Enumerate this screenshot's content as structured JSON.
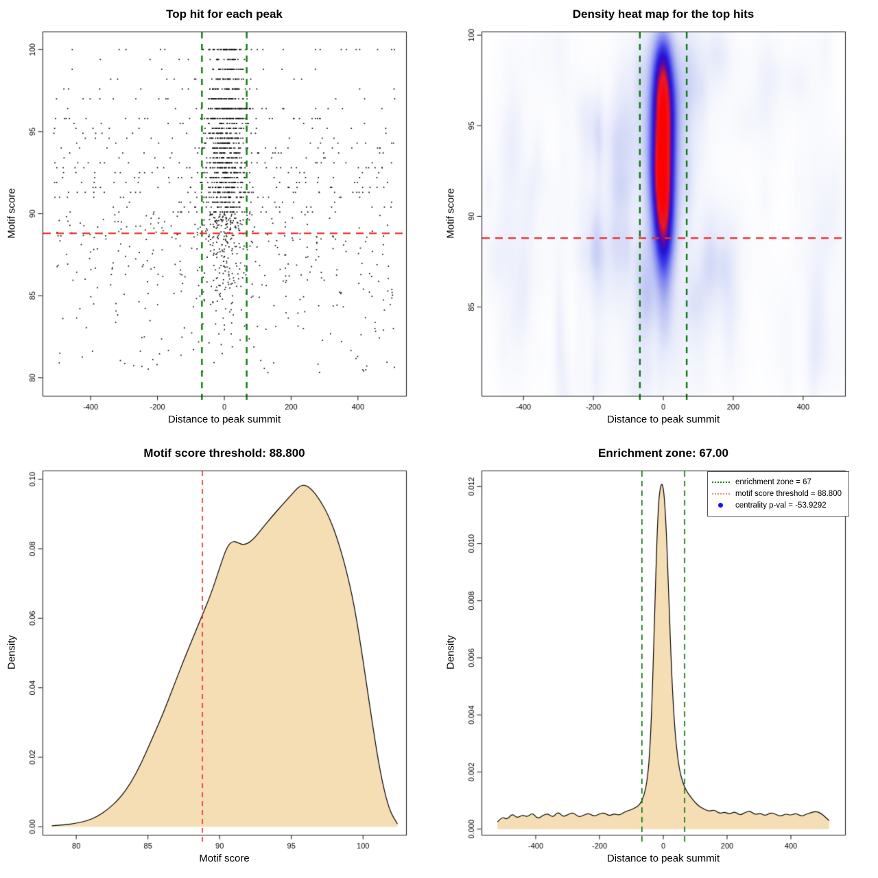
{
  "colors": {
    "background": "#ffffff",
    "threshold_line": "#ee2c2c",
    "zone_line": "#0c7a0c",
    "density_fill": "#f5deb3",
    "curve_stroke": "#000000",
    "point_color": "#0a0a0a",
    "heat_core": "#ff0000",
    "heat_halo": "#2222cc",
    "legend_green": "#0c7a0c",
    "legend_red": "#ef8585",
    "legend_blue": "#1414ff"
  },
  "summary": {
    "motif_score_threshold": "88.800",
    "enrichment_zone": "67.00",
    "centrality_p_val": "-53.9292"
  },
  "chart_data": [
    {
      "type": "scatter",
      "title": "Top hit for each peak",
      "xlabel": "Distance to peak summit",
      "ylabel": "Motif score",
      "xlim": [
        -544,
        544
      ],
      "ylim": [
        78.9,
        101.1
      ],
      "xticks": [
        -400,
        -200,
        0,
        200,
        400
      ],
      "xtick_labels": [
        "-400",
        "-200",
        "0",
        "200",
        "400"
      ],
      "yticks": [
        80,
        85,
        90,
        95,
        100
      ],
      "ytick_labels": [
        "80",
        "85",
        "90",
        "95",
        "100"
      ],
      "threshold_line": {
        "axis": "y",
        "value": 88.8
      },
      "zone_lines": {
        "values": [
          -67,
          67
        ]
      },
      "points_generator": {
        "seed": 911,
        "y_max": 100,
        "snap": [
          {
            "above": 95.5,
            "step": 0.6
          },
          {
            "above": 90,
            "step": 0.3
          }
        ],
        "background": {
          "n": 720,
          "x_min": -510,
          "x_max": 510,
          "y_mean": 90.0,
          "y_sd": 4.6,
          "y_min": 80.3
        },
        "center": {
          "n": 1150,
          "x_mean": 5,
          "x_sd": 32,
          "y_mean": 93.2,
          "y_sd": 3.8,
          "y_min": 81
        }
      }
    },
    {
      "type": "heatmap",
      "title": "Density heat map for the top hits",
      "xlabel": "Distance to peak summit",
      "ylabel": "Motif score",
      "xlim": [
        -520,
        520
      ],
      "ylim": [
        80.1,
        100.2
      ],
      "xticks": [
        -400,
        -200,
        0,
        200,
        400
      ],
      "xtick_labels": [
        "-400",
        "-200",
        "0",
        "200",
        "400"
      ],
      "yticks": [
        85,
        90,
        95,
        100
      ],
      "ytick_labels": [
        "85",
        "90",
        "95",
        "100"
      ],
      "threshold_line": {
        "axis": "y",
        "value": 88.8
      },
      "zone_lines": {
        "values": [
          -67,
          67
        ]
      },
      "hotspot": {
        "center_x": -5,
        "score_range": [
          84,
          100
        ],
        "core_score_range": [
          91,
          97.5
        ]
      },
      "blob": [
        [
          -5,
          95.4,
          27,
          2.5,
          1.0
        ],
        [
          -5,
          93.1,
          26,
          2.3,
          0.96
        ],
        [
          -4,
          91.1,
          24,
          2.1,
          0.82
        ],
        [
          -3,
          89.5,
          22,
          1.9,
          0.6
        ],
        [
          -2,
          88.1,
          20,
          1.8,
          0.44
        ],
        [
          -5,
          97.2,
          24,
          1.9,
          0.8
        ],
        [
          -6,
          98.8,
          19,
          1.5,
          0.52
        ],
        [
          -2,
          85.8,
          20,
          2.0,
          0.3
        ],
        [
          0,
          84.2,
          16,
          1.6,
          0.16
        ],
        [
          -5,
          93.5,
          60,
          6.0,
          0.26
        ],
        [
          -5,
          92.0,
          100,
          9.0,
          0.13
        ]
      ],
      "noise": {
        "seed": 77,
        "n": 150,
        "base": 0.03,
        "amp_min": 0.05,
        "amp_max": 0.17,
        "sx_min": 8,
        "sx_max": 34,
        "sy_min": 0.7,
        "sy_max": 3.0
      }
    },
    {
      "type": "area",
      "title": "Motif score threshold: 88.800",
      "xlabel": "Motif score",
      "ylabel": "Density",
      "xlim": [
        77.65,
        103.0
      ],
      "ylim": [
        -0.0023,
        0.1025
      ],
      "xticks": [
        80,
        85,
        90,
        95,
        100
      ],
      "xtick_labels": [
        "80",
        "85",
        "90",
        "95",
        "100"
      ],
      "yticks": [
        0,
        0.02,
        0.04,
        0.06,
        0.08,
        0.1
      ],
      "ytick_labels": [
        "0.00",
        "0.02",
        "0.04",
        "0.06",
        "0.08",
        "0.10"
      ],
      "threshold_line": {
        "axis": "x",
        "value": 88.8
      },
      "curve": {
        "x": [
          78.3,
          79.2,
          80,
          80.8,
          81.5,
          82.2,
          83,
          83.8,
          84.5,
          85.2,
          86,
          86.8,
          87.5,
          88.2,
          88.8,
          89.4,
          90,
          90.5,
          90.9,
          91.3,
          91.7,
          92.3,
          93,
          93.7,
          94.4,
          95,
          95.5,
          95.9,
          96.4,
          97,
          97.6,
          98.2,
          98.8,
          99.4,
          100,
          100.6,
          101.2,
          101.8,
          102.4
        ],
        "y": [
          0.0003,
          0.0006,
          0.001,
          0.0018,
          0.003,
          0.005,
          0.008,
          0.0125,
          0.018,
          0.0245,
          0.032,
          0.0405,
          0.048,
          0.055,
          0.061,
          0.067,
          0.0745,
          0.0805,
          0.0823,
          0.0817,
          0.081,
          0.0824,
          0.086,
          0.0895,
          0.0928,
          0.0955,
          0.0978,
          0.0985,
          0.0972,
          0.094,
          0.0895,
          0.083,
          0.0745,
          0.0635,
          0.048,
          0.031,
          0.0155,
          0.005,
          0.0008
        ]
      }
    },
    {
      "type": "area",
      "title": "Enrichment zone: 67.00",
      "xlabel": "Distance to peak summit",
      "ylabel": "Density",
      "xlim": [
        -570,
        570
      ],
      "ylim": [
        -0.0002,
        0.01256
      ],
      "xticks": [
        -400,
        -200,
        0,
        200,
        400
      ],
      "xtick_labels": [
        "-400",
        "-200",
        "0",
        "200",
        "400"
      ],
      "yticks": [
        0,
        0.002,
        0.004,
        0.006,
        0.008,
        0.01,
        0.012
      ],
      "ytick_labels": [
        "0.000",
        "0.002",
        "0.004",
        "0.006",
        "0.008",
        "0.010",
        "0.012"
      ],
      "zone_lines": {
        "values": [
          -67,
          67
        ]
      },
      "curve": {
        "x": [
          -520,
          -505,
          -490,
          -474,
          -458,
          -442,
          -426,
          -410,
          -394,
          -378,
          -362,
          -346,
          -330,
          -314,
          -298,
          -282,
          -266,
          -250,
          -234,
          -218,
          -202,
          -186,
          -170,
          -154,
          -138,
          -122,
          -106,
          -92,
          -80,
          -70,
          -60,
          -52,
          -44,
          -36,
          -28,
          -20,
          -14,
          -8,
          -3,
          2,
          8,
          14,
          20,
          28,
          36,
          44,
          52,
          62,
          72,
          84,
          98,
          112,
          128,
          144,
          160,
          176,
          192,
          208,
          224,
          240,
          256,
          272,
          288,
          304,
          320,
          336,
          352,
          368,
          384,
          400,
          416,
          432,
          448,
          464,
          480,
          495,
          508,
          520
        ],
        "y": [
          0.00025,
          0.00045,
          0.00032,
          0.00055,
          0.00038,
          0.0005,
          0.00042,
          0.00058,
          0.00035,
          0.00048,
          0.00055,
          0.0004,
          0.00062,
          0.00042,
          0.00052,
          0.00058,
          0.00042,
          0.00048,
          0.00056,
          0.00044,
          0.00052,
          0.00058,
          0.00046,
          0.00054,
          0.00048,
          0.0006,
          0.00066,
          0.00072,
          0.0008,
          0.00092,
          0.0012,
          0.0016,
          0.0024,
          0.0042,
          0.0072,
          0.0102,
          0.0116,
          0.01205,
          0.0121,
          0.0118,
          0.0108,
          0.0092,
          0.0072,
          0.005,
          0.0035,
          0.0026,
          0.002,
          0.0016,
          0.00135,
          0.00115,
          0.00095,
          0.0008,
          0.0007,
          0.00062,
          0.00068,
          0.00054,
          0.0006,
          0.00052,
          0.00062,
          0.00048,
          0.00058,
          0.00064,
          0.0005,
          0.00056,
          0.00046,
          0.00058,
          0.00052,
          0.00044,
          0.00054,
          0.00048,
          0.00056,
          0.00044,
          0.00052,
          0.00058,
          0.00062,
          0.00055,
          0.00042,
          0.0003
        ]
      },
      "legend": {
        "entries": [
          {
            "label": "enrichment zone = 67",
            "swatch": "green-dotted"
          },
          {
            "label": "motif score threshold = 88.800",
            "swatch": "red-dotted"
          },
          {
            "label": "centrality p-val = -53.9292",
            "swatch": "blue-dot"
          }
        ]
      }
    }
  ]
}
